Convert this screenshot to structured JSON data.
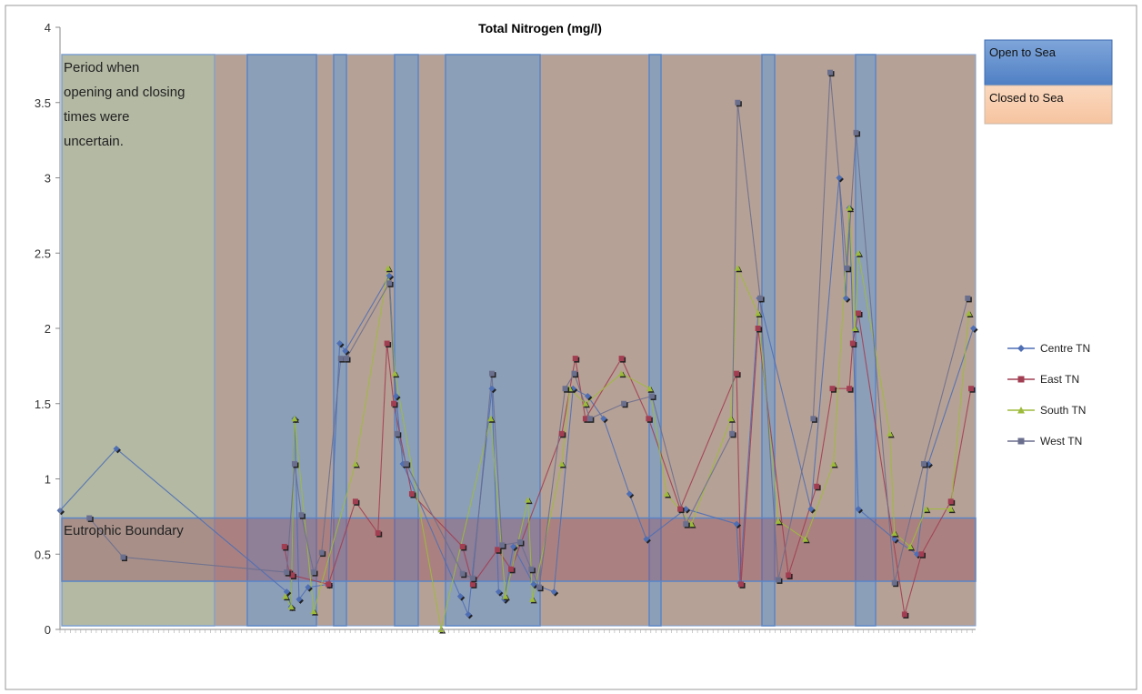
{
  "chart_data": {
    "type": "line",
    "title": "Total Nitrogen (mg/l)",
    "ylim": [
      0,
      4
    ],
    "yticks": [
      "0",
      "0.5",
      "1",
      "1.5",
      "2",
      "2.5",
      "3",
      "3.5",
      "4"
    ],
    "grid": false,
    "legend_position": "right",
    "annotations": {
      "uncertain_period": "Period when opening and closing times were uncertain.",
      "eutrophic_boundary": "Eutrophic Boundary",
      "open_to_sea": "Open to Sea",
      "closed_to_sea": "Closed to Sea"
    },
    "eutrophic_band": [
      0.32,
      0.74
    ],
    "series": [
      {
        "name": "Centre TN",
        "color": "#4F6FB5",
        "marker": "diamond",
        "points": [
          [
            0,
            0.79
          ],
          [
            50,
            1.2
          ],
          [
            201,
            0.25
          ],
          [
            205,
            0.15
          ],
          [
            208,
            1.4
          ],
          [
            212,
            0.2
          ],
          [
            220,
            0.28
          ],
          [
            238,
            0.3
          ],
          [
            248,
            1.9
          ],
          [
            253,
            1.85
          ],
          [
            292,
            2.35
          ],
          [
            298,
            1.55
          ],
          [
            304,
            1.1
          ],
          [
            355,
            0.22
          ],
          [
            362,
            0.1
          ],
          [
            383,
            1.6
          ],
          [
            389,
            0.25
          ],
          [
            394,
            0.2
          ],
          [
            402,
            0.55
          ],
          [
            420,
            0.3
          ],
          [
            438,
            0.25
          ],
          [
            455,
            1.6
          ],
          [
            468,
            1.55
          ],
          [
            482,
            1.4
          ],
          [
            505,
            0.9
          ],
          [
            520,
            0.6
          ],
          [
            555,
            0.8
          ],
          [
            600,
            0.7
          ],
          [
            603,
            0.31
          ],
          [
            620,
            2.2
          ],
          [
            666,
            0.8
          ],
          [
            691,
            3.0
          ],
          [
            697,
            2.2
          ],
          [
            700,
            2.8
          ],
          [
            708,
            0.8
          ],
          [
            740,
            0.6
          ],
          [
            760,
            0.5
          ],
          [
            770,
            1.1
          ],
          [
            810,
            2.0
          ]
        ]
      },
      {
        "name": "East TN",
        "color": "#A23E52",
        "marker": "square",
        "points": [
          [
            199,
            0.55
          ],
          [
            203,
            0.38
          ],
          [
            206,
            0.36
          ],
          [
            238,
            0.3
          ],
          [
            262,
            0.85
          ],
          [
            282,
            0.64
          ],
          [
            290,
            1.9
          ],
          [
            296,
            1.5
          ],
          [
            312,
            0.9
          ],
          [
            357,
            0.55
          ],
          [
            366,
            0.3
          ],
          [
            388,
            0.53
          ],
          [
            400,
            0.4
          ],
          [
            445,
            1.3
          ],
          [
            457,
            1.8
          ],
          [
            466,
            1.4
          ],
          [
            498,
            1.8
          ],
          [
            522,
            1.4
          ],
          [
            550,
            0.8
          ],
          [
            600,
            1.7
          ],
          [
            604,
            0.3
          ],
          [
            619,
            2.0
          ],
          [
            646,
            0.36
          ],
          [
            671,
            0.95
          ],
          [
            685,
            1.6
          ],
          [
            700,
            1.6
          ],
          [
            703,
            1.9
          ],
          [
            708,
            2.1
          ],
          [
            749,
            0.1
          ],
          [
            764,
            0.5
          ],
          [
            790,
            0.85
          ],
          [
            808,
            1.6
          ]
        ]
      },
      {
        "name": "South TN",
        "color": "#9DBB3B",
        "marker": "triangle",
        "points": [
          [
            200,
            0.22
          ],
          [
            205,
            0.15
          ],
          [
            208,
            1.4
          ],
          [
            225,
            0.12
          ],
          [
            262,
            1.1
          ],
          [
            291,
            2.4
          ],
          [
            297,
            1.7
          ],
          [
            338,
            0.0
          ],
          [
            382,
            1.4
          ],
          [
            395,
            0.22
          ],
          [
            415,
            0.86
          ],
          [
            419,
            0.2
          ],
          [
            445,
            1.1
          ],
          [
            452,
            1.6
          ],
          [
            466,
            1.5
          ],
          [
            498,
            1.7
          ],
          [
            523,
            1.6
          ],
          [
            538,
            0.9
          ],
          [
            560,
            0.7
          ],
          [
            595,
            1.4
          ],
          [
            601,
            2.4
          ],
          [
            619,
            2.1
          ],
          [
            637,
            0.72
          ],
          [
            661,
            0.6
          ],
          [
            686,
            1.1
          ],
          [
            700,
            2.8
          ],
          [
            705,
            2.0
          ],
          [
            708,
            2.5
          ],
          [
            736,
            1.3
          ],
          [
            740,
            0.64
          ],
          [
            754,
            0.55
          ],
          [
            768,
            0.8
          ],
          [
            790,
            0.8
          ],
          [
            806,
            2.1
          ]
        ]
      },
      {
        "name": "West TN",
        "color": "#6B6F8E",
        "marker": "square",
        "points": [
          [
            26,
            0.74
          ],
          [
            56,
            0.48
          ],
          [
            201,
            0.38
          ],
          [
            208,
            1.1
          ],
          [
            214,
            0.76
          ],
          [
            225,
            0.38
          ],
          [
            232,
            0.51
          ],
          [
            249,
            1.8
          ],
          [
            254,
            1.8
          ],
          [
            292,
            2.3
          ],
          [
            299,
            1.3
          ],
          [
            307,
            1.1
          ],
          [
            357,
            0.37
          ],
          [
            366,
            0.34
          ],
          [
            383,
            1.7
          ],
          [
            392,
            0.56
          ],
          [
            408,
            0.58
          ],
          [
            418,
            0.4
          ],
          [
            425,
            0.28
          ],
          [
            448,
            1.6
          ],
          [
            456,
            1.7
          ],
          [
            470,
            1.4
          ],
          [
            500,
            1.5
          ],
          [
            525,
            1.55
          ],
          [
            555,
            0.7
          ],
          [
            596,
            1.3
          ],
          [
            601,
            3.5
          ],
          [
            621,
            2.2
          ],
          [
            637,
            0.33
          ],
          [
            668,
            1.4
          ],
          [
            683,
            3.7
          ],
          [
            698,
            2.4
          ],
          [
            706,
            3.3
          ],
          [
            740,
            0.31
          ],
          [
            766,
            1.1
          ],
          [
            805,
            2.2
          ]
        ]
      }
    ]
  }
}
